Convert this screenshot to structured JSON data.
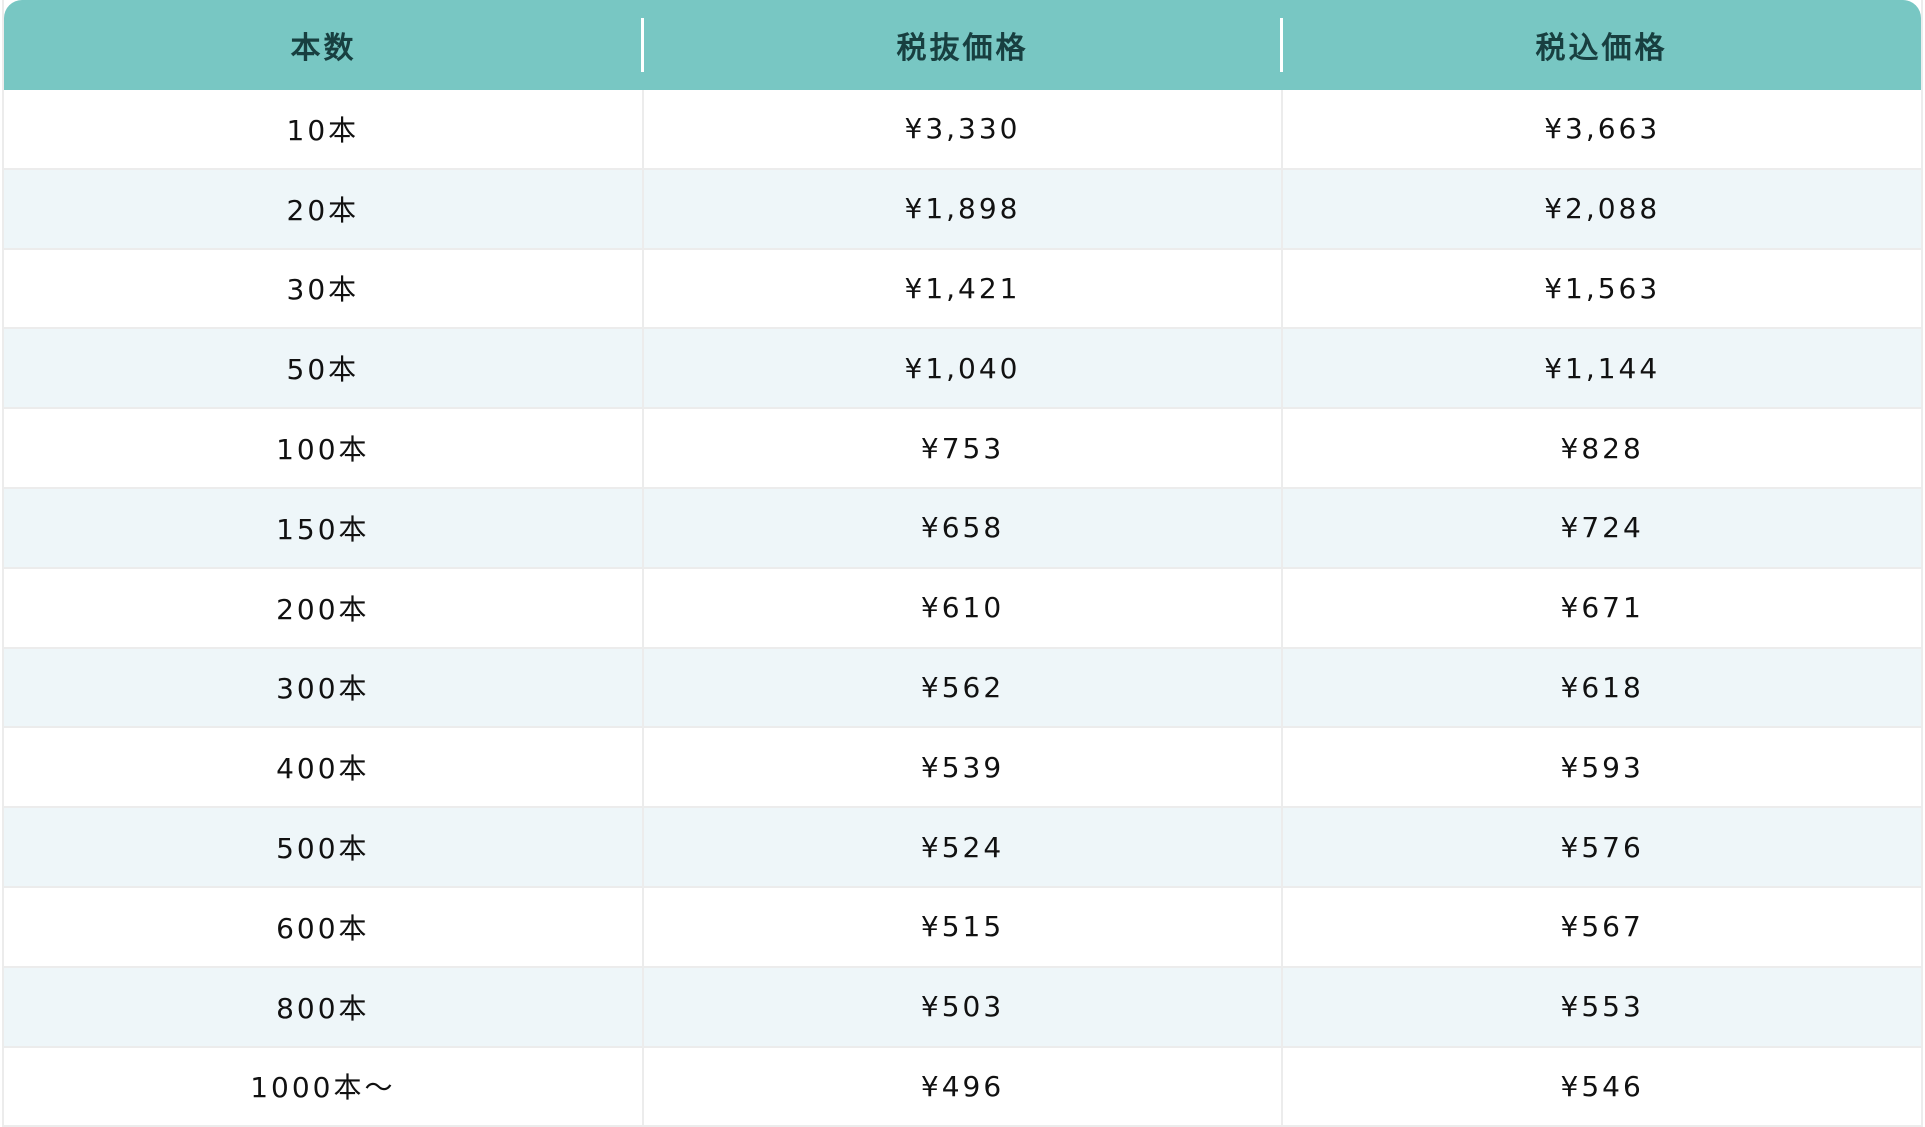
{
  "table": {
    "header_color": "#78c7c3",
    "stripe_color": "#eef6f9",
    "columns": [
      "本数",
      "税抜価格",
      "税込価格"
    ],
    "rows": [
      [
        "10本",
        "¥3,330",
        "¥3,663"
      ],
      [
        "20本",
        "¥1,898",
        "¥2,088"
      ],
      [
        "30本",
        "¥1,421",
        "¥1,563"
      ],
      [
        "50本",
        "¥1,040",
        "¥1,144"
      ],
      [
        "100本",
        "¥753",
        "¥828"
      ],
      [
        "150本",
        "¥658",
        "¥724"
      ],
      [
        "200本",
        "¥610",
        "¥671"
      ],
      [
        "300本",
        "¥562",
        "¥618"
      ],
      [
        "400本",
        "¥539",
        "¥593"
      ],
      [
        "500本",
        "¥524",
        "¥576"
      ],
      [
        "600本",
        "¥515",
        "¥567"
      ],
      [
        "800本",
        "¥503",
        "¥553"
      ],
      [
        "1000本～",
        "¥496",
        "¥546"
      ]
    ]
  }
}
